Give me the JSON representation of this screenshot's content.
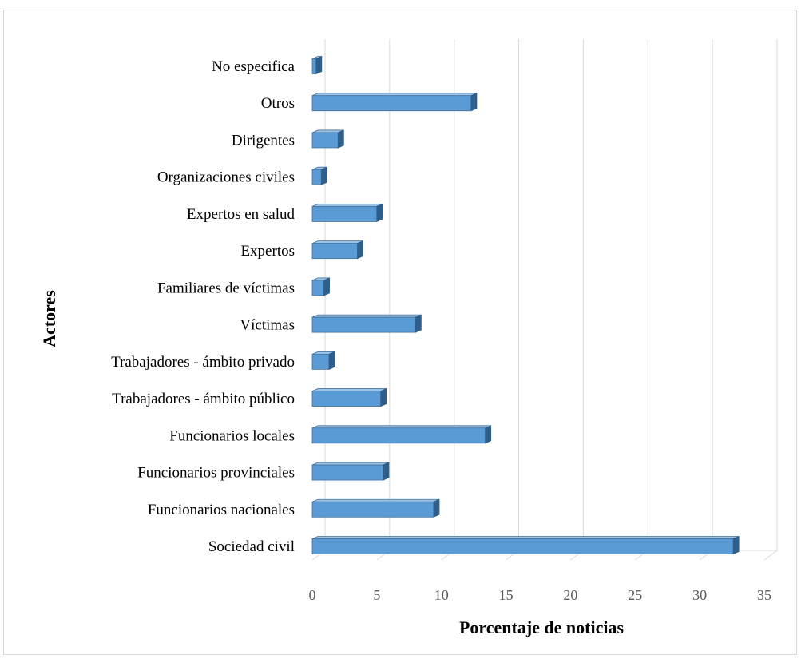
{
  "chart_data": {
    "type": "bar",
    "orientation": "horizontal",
    "style": "3d",
    "title": "",
    "xlabel": "Porcentaje de noticias",
    "ylabel": "Actores",
    "xlim": [
      0,
      35
    ],
    "xticks": [
      0,
      5,
      10,
      15,
      20,
      25,
      30,
      35
    ],
    "grid": true,
    "legend": "none",
    "bar_color": "#5b9bd5",
    "categories": [
      "No especifica",
      "Otros",
      "Dirigentes",
      "Organizaciones  civiles",
      "Expertos en salud",
      "Expertos",
      "Familiares  de víctimas",
      "Víctimas",
      "Trabajadores - ámbito privado",
      "Trabajadores - ámbito público",
      "Funcionarios locales",
      "Funcionarios provinciales",
      "Funcionarios nacionales",
      "Sociedad civil"
    ],
    "values": [
      0.3,
      12.3,
      2.0,
      0.7,
      5.0,
      3.5,
      0.9,
      8.0,
      1.3,
      5.3,
      13.4,
      5.5,
      9.4,
      32.6
    ]
  }
}
